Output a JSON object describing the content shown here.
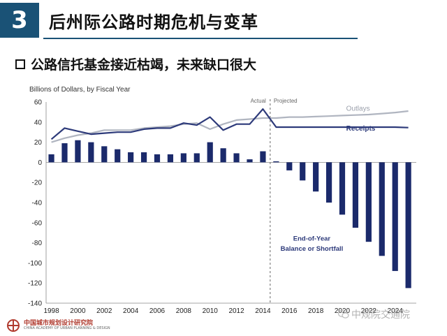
{
  "header": {
    "section_number": "3",
    "title": "后州际公路时期危机与变革"
  },
  "bullet": {
    "text": "公路信托基金接近枯竭，未来缺口很大"
  },
  "chart_data": {
    "type": "bar",
    "subtitle": "Billions of Dollars, by Fiscal Year",
    "ylim": [
      -140,
      60
    ],
    "yticks": [
      60,
      40,
      20,
      0,
      -20,
      -40,
      -60,
      -80,
      -100,
      -120,
      -140
    ],
    "xticks": [
      "1998",
      "2000",
      "2002",
      "2004",
      "2006",
      "2008",
      "2010",
      "2012",
      "2014",
      "2016",
      "2018",
      "2020",
      "2022",
      "2024"
    ],
    "years": [
      1998,
      1999,
      2000,
      2001,
      2002,
      2003,
      2004,
      2005,
      2006,
      2007,
      2008,
      2009,
      2010,
      2011,
      2012,
      2013,
      2014,
      2015,
      2016,
      2017,
      2018,
      2019,
      2020,
      2021,
      2022,
      2023,
      2024,
      2025
    ],
    "balance": [
      8,
      19,
      22,
      20,
      16,
      13,
      10,
      10,
      8,
      8,
      9,
      9,
      20,
      14,
      9,
      3,
      11,
      1,
      -8,
      -18,
      -29,
      -40,
      -52,
      -65,
      -79,
      -93,
      -108,
      -125
    ],
    "outlays_line": {
      "name": "Outlays",
      "years": [
        1998,
        1999,
        2000,
        2001,
        2002,
        2003,
        2004,
        2005,
        2006,
        2007,
        2008,
        2009,
        2010,
        2011,
        2012,
        2013,
        2014,
        2015,
        2016,
        2017,
        2018,
        2019,
        2020,
        2021,
        2022,
        2023,
        2024,
        2025
      ],
      "values": [
        20,
        24,
        27,
        29,
        32,
        32,
        32,
        34,
        35,
        36,
        38,
        39,
        33,
        38,
        42,
        43,
        44,
        44,
        45,
        45,
        45.5,
        46,
        46.5,
        47,
        47.5,
        48.5,
        49.5,
        51
      ]
    },
    "receipts_line": {
      "name": "Receipts",
      "years": [
        1998,
        1999,
        2000,
        2001,
        2002,
        2003,
        2004,
        2005,
        2006,
        2007,
        2008,
        2009,
        2010,
        2011,
        2012,
        2013,
        2014,
        2015,
        2016,
        2017,
        2018,
        2019,
        2020,
        2021,
        2022,
        2023,
        2024,
        2025
      ],
      "values": [
        23,
        34,
        31,
        28,
        29,
        30,
        30,
        33,
        34,
        34,
        39,
        37,
        45,
        32,
        38,
        38,
        53,
        35,
        35,
        35,
        35,
        35,
        35,
        35,
        35,
        35,
        35,
        34.5
      ]
    },
    "annotations": {
      "actual": "Actual",
      "projected": "Projected",
      "shortfall_line1": "End-of-Year",
      "shortfall_line2": "Balance or Shortfall"
    },
    "colors": {
      "bars": "#1b2a6b",
      "outlays": "#b0b5c0",
      "receipts": "#2d3a7a",
      "divider": "#666666"
    }
  },
  "footer": {
    "org_cn": "中国城市规划设计研究院",
    "org_en": "CHINA ACADEMY OF URBAN PLANNING & DESIGN",
    "watermark": "中规院交通院"
  }
}
